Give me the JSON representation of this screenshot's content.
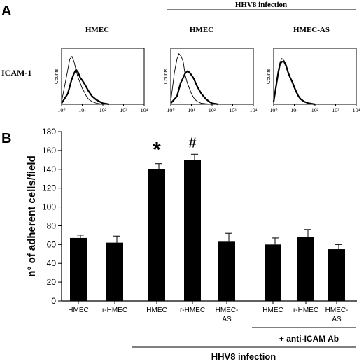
{
  "panel_a": {
    "label": "A",
    "infection_header": "HHV8 infection",
    "row_label": "ICAM-1",
    "histograms": [
      {
        "title": "HMEC",
        "ylabel": "Counts",
        "xticks": [
          "10⁰",
          "10¹",
          "10²",
          "10³",
          "10⁴"
        ]
      },
      {
        "title": "HMEC",
        "ylabel": "Counts",
        "xticks": [
          "10⁰",
          "10¹",
          "10²",
          "10³",
          "10⁴"
        ]
      },
      {
        "title": "HMEC-AS",
        "ylabel": "Counts",
        "xticks": [
          "10⁰",
          "10¹",
          "10²",
          "10³",
          "10⁴"
        ]
      }
    ]
  },
  "panel_b": {
    "label": "B",
    "significance_marks": [
      "*",
      "#"
    ],
    "antibody_label": "+ anti-ICAM Ab",
    "infection_label": "HHV8 infection"
  },
  "chart_data": [
    {
      "type": "line",
      "title": "HMEC",
      "xlabel": "",
      "ylabel": "Counts",
      "x_scale": "log",
      "xlim": [
        1,
        10000
      ],
      "series": [
        {
          "style": "thin",
          "x": [
            1,
            1.8,
            2.5,
            3.2,
            4,
            5,
            6.3,
            8,
            10,
            13,
            16,
            20,
            30,
            50,
            100
          ],
          "y": [
            0.05,
            0.55,
            0.85,
            0.9,
            0.8,
            0.65,
            0.5,
            0.4,
            0.3,
            0.22,
            0.15,
            0.1,
            0.05,
            0.02,
            0
          ]
        },
        {
          "style": "thick",
          "x": [
            1,
            2,
            3,
            4,
            5,
            6.3,
            8,
            10,
            13,
            16,
            20,
            30,
            50,
            80,
            100,
            200
          ],
          "y": [
            0.02,
            0.2,
            0.45,
            0.58,
            0.65,
            0.6,
            0.5,
            0.45,
            0.38,
            0.32,
            0.25,
            0.15,
            0.08,
            0.04,
            0.02,
            0
          ]
        }
      ]
    },
    {
      "type": "line",
      "title": "HMEC",
      "xlabel": "",
      "ylabel": "Counts",
      "x_scale": "log",
      "xlim": [
        1,
        10000
      ],
      "series": [
        {
          "style": "thin",
          "x": [
            1,
            1.5,
            2,
            2.5,
            3.2,
            4,
            5,
            6.3,
            8,
            10,
            13,
            16,
            20,
            30,
            50,
            100
          ],
          "y": [
            0.05,
            0.6,
            0.85,
            0.95,
            0.9,
            0.8,
            0.55,
            0.4,
            0.3,
            0.2,
            0.12,
            0.08,
            0.05,
            0.02,
            0.01,
            0
          ]
        },
        {
          "style": "thick",
          "x": [
            1,
            2,
            3,
            4,
            5,
            6.3,
            8,
            10,
            13,
            16,
            20,
            30,
            50,
            80,
            100,
            200
          ],
          "y": [
            0.02,
            0.15,
            0.4,
            0.5,
            0.58,
            0.62,
            0.6,
            0.55,
            0.48,
            0.4,
            0.32,
            0.2,
            0.1,
            0.04,
            0.02,
            0
          ]
        }
      ]
    },
    {
      "type": "line",
      "title": "HMEC-AS",
      "xlabel": "",
      "ylabel": "Counts",
      "x_scale": "log",
      "xlim": [
        1,
        10000
      ],
      "series": [
        {
          "style": "thin",
          "x": [
            1,
            1.6,
            2,
            2.5,
            3.2,
            4,
            5,
            6.3,
            8,
            10,
            13,
            16,
            20,
            30,
            50,
            100
          ],
          "y": [
            0.05,
            0.6,
            0.78,
            0.86,
            0.82,
            0.75,
            0.6,
            0.5,
            0.4,
            0.3,
            0.2,
            0.14,
            0.1,
            0.05,
            0.02,
            0
          ]
        },
        {
          "style": "thick",
          "x": [
            1,
            1.6,
            2,
            2.5,
            3.2,
            4,
            5,
            6.3,
            8,
            10,
            13,
            16,
            20,
            30,
            50,
            100
          ],
          "y": [
            0.05,
            0.55,
            0.75,
            0.8,
            0.8,
            0.72,
            0.6,
            0.5,
            0.42,
            0.32,
            0.22,
            0.15,
            0.1,
            0.05,
            0.02,
            0
          ]
        }
      ]
    },
    {
      "type": "bar",
      "ylabel": "n° of adherent cells/field",
      "ylim": [
        0,
        180
      ],
      "yticks": [
        0,
        20,
        40,
        60,
        80,
        100,
        120,
        140,
        160,
        180
      ],
      "categories": [
        "HMEC",
        "r-HMEC",
        "HMEC",
        "r-HMEC",
        "HMEC-AS",
        "HMEC",
        "r-HMEC",
        "HMEC-AS"
      ],
      "category_lines": [
        [
          "HMEC"
        ],
        [
          "r-HMEC"
        ],
        [
          "HMEC"
        ],
        [
          "r-HMEC"
        ],
        [
          "HMEC-",
          "AS"
        ],
        [
          "HMEC"
        ],
        [
          "r-HMEC"
        ],
        [
          "HMEC-",
          "AS"
        ]
      ],
      "values": [
        67,
        62,
        140,
        150,
        63,
        60,
        68,
        55
      ],
      "errors": [
        3,
        7,
        6,
        6,
        9,
        7,
        8,
        5
      ],
      "annotations": [
        {
          "category_index": 2,
          "text": "*"
        },
        {
          "category_index": 3,
          "text": "#"
        }
      ],
      "groups": [
        {
          "label": "HHV8 infection",
          "from": 2,
          "to": 7
        },
        {
          "label": "+ anti-ICAM Ab",
          "from": 5,
          "to": 7
        }
      ]
    }
  ]
}
